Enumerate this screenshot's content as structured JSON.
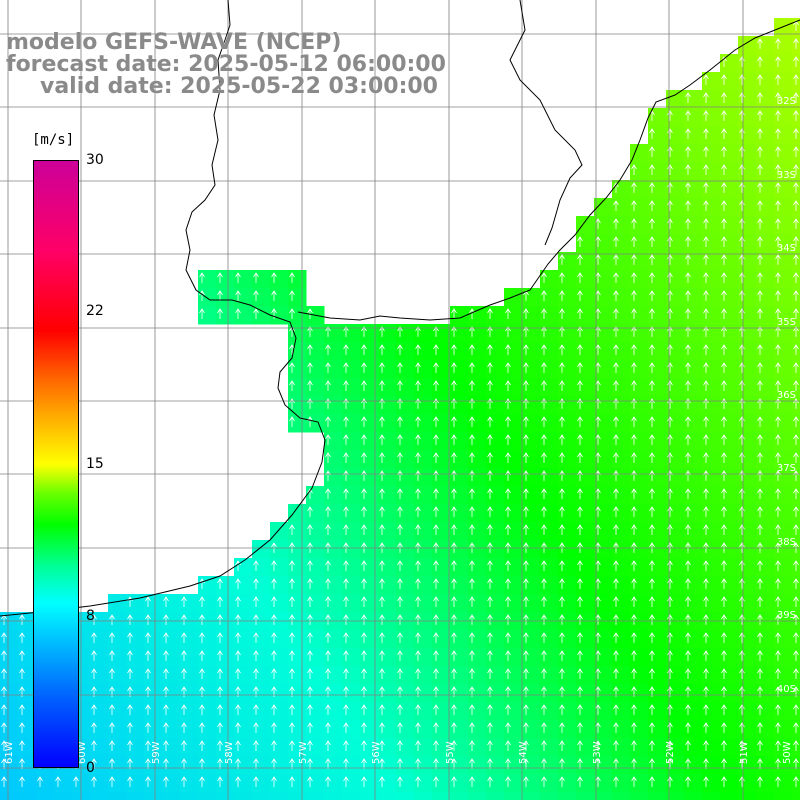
{
  "header": {
    "line1": "modelo GEFS-WAVE (NCEP)",
    "line2": "forecast date: 2025-05-12 06:00:00",
    "line3": "valid date: 2025-05-22 03:00:00"
  },
  "colorbar": {
    "unit": "[m/s]",
    "min": 0,
    "max": 30,
    "ticks": [
      "30",
      "22",
      "15",
      "8",
      "0"
    ],
    "tick_values": [
      30,
      22,
      15,
      8,
      0
    ]
  },
  "map": {
    "field": "wind speed",
    "background_color": "#ffffff",
    "grid_color": "#808080",
    "coast_color": "#000000",
    "arrow_color": "#ffffff",
    "lat_labels": [
      "32S",
      "33S",
      "34S",
      "35S",
      "36S",
      "37S",
      "38S",
      "39S",
      "40S"
    ],
    "lon_labels": [
      "61W",
      "60W",
      "59W",
      "58W",
      "57W",
      "56W",
      "55W",
      "54W",
      "53W",
      "52W",
      "51W",
      "50W"
    ]
  }
}
